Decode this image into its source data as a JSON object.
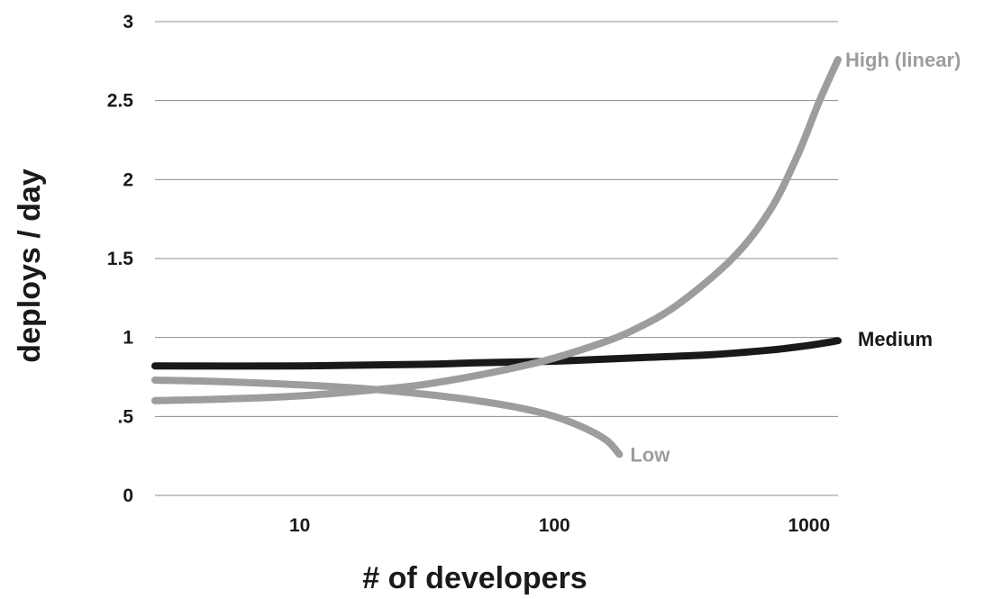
{
  "chart_data": {
    "type": "line",
    "title": "",
    "xlabel": "# of developers",
    "ylabel": "deploys / day",
    "x_scale": "log",
    "xlim": [
      2.7,
      1300
    ],
    "ylim": [
      0,
      3
    ],
    "x_ticks": [
      {
        "value": 10,
        "label": "10"
      },
      {
        "value": 100,
        "label": "100"
      },
      {
        "value": 1000,
        "label": "1000"
      }
    ],
    "y_ticks": [
      {
        "value": 0,
        "label": "0"
      },
      {
        "value": 0.5,
        "label": ".5"
      },
      {
        "value": 1,
        "label": "1"
      },
      {
        "value": 1.5,
        "label": "1.5"
      },
      {
        "value": 2,
        "label": "2"
      },
      {
        "value": 2.5,
        "label": "2.5"
      },
      {
        "value": 3,
        "label": "3"
      }
    ],
    "grid": true,
    "legend": "none (series labelled at line ends)",
    "series": [
      {
        "name": "High (linear)",
        "color": "#9d9d9f",
        "points": [
          [
            2.7,
            0.6
          ],
          [
            5,
            0.61
          ],
          [
            10,
            0.63
          ],
          [
            20,
            0.67
          ],
          [
            30,
            0.7
          ],
          [
            50,
            0.76
          ],
          [
            80,
            0.83
          ],
          [
            100,
            0.87
          ],
          [
            150,
            0.96
          ],
          [
            200,
            1.04
          ],
          [
            300,
            1.2
          ],
          [
            500,
            1.5
          ],
          [
            700,
            1.8
          ],
          [
            900,
            2.15
          ],
          [
            1100,
            2.5
          ],
          [
            1300,
            2.76
          ]
        ]
      },
      {
        "name": "Medium",
        "color": "#1a1818",
        "points": [
          [
            2.7,
            0.82
          ],
          [
            10,
            0.82
          ],
          [
            30,
            0.83
          ],
          [
            50,
            0.84
          ],
          [
            100,
            0.85
          ],
          [
            200,
            0.87
          ],
          [
            400,
            0.89
          ],
          [
            700,
            0.92
          ],
          [
            1000,
            0.95
          ],
          [
            1300,
            0.98
          ]
        ]
      },
      {
        "name": "Low",
        "color": "#9d9d9f",
        "points": [
          [
            2.7,
            0.73
          ],
          [
            5,
            0.72
          ],
          [
            10,
            0.7
          ],
          [
            20,
            0.67
          ],
          [
            40,
            0.62
          ],
          [
            70,
            0.56
          ],
          [
            100,
            0.5
          ],
          [
            130,
            0.43
          ],
          [
            160,
            0.35
          ],
          [
            180,
            0.26
          ]
        ]
      }
    ]
  }
}
